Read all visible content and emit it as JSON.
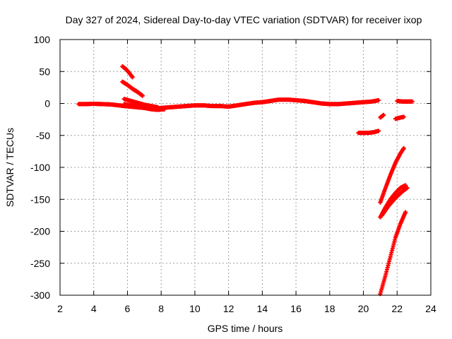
{
  "chart_data": {
    "type": "scatter",
    "title": "Day 327 of 2024, Sidereal Day-to-day VTEC variation (SDTVAR) for receiver ixop",
    "xlabel": "GPS time / hours",
    "ylabel": "SDTVAR / TECUs",
    "xlim": [
      2,
      24
    ],
    "ylim": [
      -300,
      100
    ],
    "xticks": [
      "2",
      "4",
      "6",
      "8",
      "10",
      "12",
      "14",
      "16",
      "18",
      "20",
      "22",
      "24"
    ],
    "yticks": [
      "100",
      "50",
      "0",
      "-50",
      "-100",
      "-150",
      "-200",
      "-250",
      "-300"
    ],
    "grid": true,
    "marker": "plus",
    "color": "#ff0000",
    "series": [
      {
        "name": "main-trace",
        "points": [
          [
            3.1,
            -1
          ],
          [
            3.5,
            -1
          ],
          [
            4.0,
            -0.5
          ],
          [
            4.5,
            -1
          ],
          [
            5.0,
            -1.5
          ],
          [
            5.5,
            -3
          ],
          [
            5.8,
            -4
          ],
          [
            6.2,
            -5
          ],
          [
            6.6,
            -6
          ],
          [
            7.0,
            -7
          ],
          [
            7.5,
            -8
          ],
          [
            8.0,
            -7
          ],
          [
            8.5,
            -6
          ],
          [
            9.0,
            -5
          ],
          [
            9.5,
            -4
          ],
          [
            10.0,
            -3
          ],
          [
            10.5,
            -3
          ],
          [
            11.0,
            -4
          ],
          [
            11.5,
            -4
          ],
          [
            12.0,
            -5
          ],
          [
            12.5,
            -3
          ],
          [
            13.0,
            -1
          ],
          [
            13.5,
            1
          ],
          [
            14.0,
            2
          ],
          [
            14.5,
            4
          ],
          [
            15.0,
            6
          ],
          [
            15.5,
            6
          ],
          [
            16.0,
            5
          ],
          [
            16.5,
            4
          ],
          [
            17.0,
            2
          ],
          [
            17.5,
            0
          ],
          [
            18.0,
            -1
          ],
          [
            18.5,
            -1
          ],
          [
            19.0,
            0
          ],
          [
            19.5,
            1
          ],
          [
            20.0,
            2
          ],
          [
            20.5,
            3
          ],
          [
            20.9,
            5
          ]
        ]
      },
      {
        "name": "arc-1",
        "points": [
          [
            5.7,
            58
          ],
          [
            5.9,
            54
          ],
          [
            6.1,
            48
          ],
          [
            6.3,
            41
          ]
        ]
      },
      {
        "name": "arc-2",
        "points": [
          [
            5.7,
            34
          ],
          [
            6.0,
            29
          ],
          [
            6.3,
            23
          ],
          [
            6.6,
            18
          ],
          [
            6.9,
            12
          ]
        ]
      },
      {
        "name": "arc-3",
        "points": [
          [
            5.8,
            7
          ],
          [
            6.2,
            4
          ],
          [
            6.6,
            1
          ],
          [
            7.0,
            -2
          ],
          [
            7.4,
            -4
          ],
          [
            7.8,
            -6
          ]
        ]
      },
      {
        "name": "arc-4",
        "points": [
          [
            5.8,
            -1
          ],
          [
            6.2,
            -3
          ],
          [
            6.6,
            -5
          ],
          [
            7.0,
            -7
          ],
          [
            7.4,
            -9
          ],
          [
            7.8,
            -10
          ],
          [
            8.2,
            -9
          ]
        ]
      },
      {
        "name": "late-flat",
        "points": [
          [
            19.7,
            -46
          ],
          [
            20.0,
            -46
          ],
          [
            20.3,
            -46
          ],
          [
            20.6,
            -45
          ],
          [
            20.9,
            -43
          ]
        ]
      },
      {
        "name": "late-short-1",
        "points": [
          [
            21.0,
            -22
          ],
          [
            21.2,
            -18
          ]
        ]
      },
      {
        "name": "late-short-2",
        "points": [
          [
            21.9,
            -24
          ],
          [
            22.2,
            -22
          ],
          [
            22.4,
            -21
          ]
        ]
      },
      {
        "name": "late-top",
        "points": [
          [
            22.0,
            4
          ],
          [
            22.3,
            3
          ],
          [
            22.6,
            3
          ],
          [
            22.9,
            3
          ]
        ]
      },
      {
        "name": "drop-1",
        "points": [
          [
            21.0,
            -155
          ],
          [
            21.3,
            -133
          ],
          [
            21.6,
            -112
          ],
          [
            21.9,
            -93
          ],
          [
            22.2,
            -78
          ],
          [
            22.4,
            -70
          ]
        ]
      },
      {
        "name": "drop-2",
        "points": [
          [
            21.0,
            -178
          ],
          [
            21.3,
            -163
          ],
          [
            21.6,
            -150
          ],
          [
            21.9,
            -140
          ],
          [
            22.2,
            -132
          ],
          [
            22.5,
            -128
          ]
        ]
      },
      {
        "name": "drop-3",
        "points": [
          [
            21.1,
            -175
          ],
          [
            21.5,
            -160
          ],
          [
            21.9,
            -148
          ],
          [
            22.3,
            -138
          ],
          [
            22.6,
            -132
          ]
        ]
      },
      {
        "name": "drop-4",
        "points": [
          [
            21.0,
            -298
          ],
          [
            21.3,
            -270
          ],
          [
            21.6,
            -240
          ],
          [
            21.9,
            -210
          ],
          [
            22.2,
            -188
          ],
          [
            22.5,
            -170
          ]
        ]
      }
    ]
  }
}
